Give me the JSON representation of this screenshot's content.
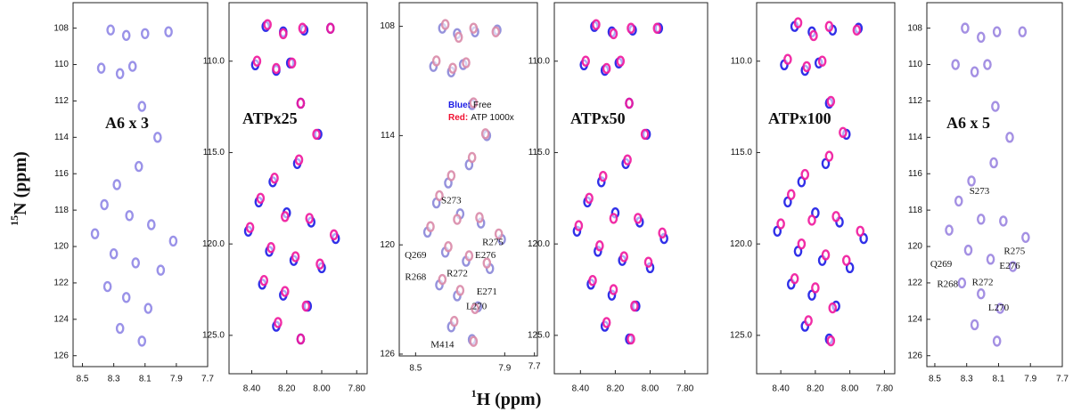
{
  "figure": {
    "ylabel_sup": "15",
    "ylabel": "N (ppm)",
    "xlabel_sup": "1",
    "xlabel": "H (ppm)"
  },
  "chart_data": [
    {
      "type": "scatter",
      "title": "A6 x 3",
      "xlim": [
        8.56,
        7.7
      ],
      "ylim": [
        106.6,
        126.6
      ],
      "xticks": [
        8.5,
        8.3,
        8.1,
        7.9,
        7.7
      ],
      "yticks": [
        108,
        110,
        112,
        114,
        116,
        118,
        120,
        122,
        124,
        126
      ],
      "series": [
        {
          "color": "#8f86e6",
          "x": [
            8.32,
            8.22,
            8.1,
            7.95,
            8.38,
            8.26,
            8.18,
            8.12,
            8.02,
            8.14,
            8.28,
            8.36,
            8.2,
            8.06,
            7.92,
            8.42,
            8.3,
            8.16,
            8.0,
            8.34,
            8.22,
            8.08,
            8.26,
            8.12
          ],
          "values": [
            108.1,
            108.4,
            108.3,
            108.2,
            110.2,
            110.5,
            110.1,
            112.3,
            114.0,
            115.6,
            116.6,
            117.7,
            118.3,
            118.8,
            119.7,
            119.3,
            120.4,
            120.9,
            121.3,
            122.2,
            122.8,
            123.4,
            124.5,
            125.2
          ]
        }
      ]
    },
    {
      "type": "scatter",
      "title": "ATPx25",
      "xlim": [
        8.53,
        7.74
      ],
      "ylim": [
        106.8,
        127.1
      ],
      "xticks": [
        {
          "value": 8.4,
          "label": "8.40"
        },
        {
          "value": 8.2,
          "label": "8.20"
        },
        {
          "value": 8,
          "label": "8.00"
        },
        {
          "value": 7.8,
          "label": "7.80"
        }
      ],
      "yticks": [
        {
          "value": 110,
          "label": "110.0"
        },
        {
          "value": 115,
          "label": "115.0"
        },
        {
          "value": 120,
          "label": "120.0"
        },
        {
          "value": 125,
          "label": "125.0"
        }
      ],
      "series": [
        {
          "color": "#1a1ae6",
          "x": [
            8.32,
            8.22,
            8.1,
            7.95,
            8.38,
            8.26,
            8.18,
            8.12,
            8.02,
            8.14,
            8.28,
            8.36,
            8.2,
            8.06,
            7.92,
            8.42,
            8.3,
            8.16,
            8.0,
            8.34,
            8.22,
            8.08,
            8.26,
            8.12
          ],
          "values": [
            108.1,
            108.4,
            108.3,
            108.2,
            110.2,
            110.5,
            110.1,
            112.3,
            114.0,
            115.6,
            116.6,
            117.7,
            118.3,
            118.8,
            119.7,
            119.3,
            120.4,
            120.9,
            121.3,
            122.2,
            122.8,
            123.4,
            124.5,
            125.2
          ]
        },
        {
          "color": "#f0169c",
          "x": [
            8.31,
            8.22,
            8.11,
            7.95,
            8.37,
            8.26,
            8.17,
            8.12,
            8.03,
            8.13,
            8.27,
            8.35,
            8.21,
            8.07,
            7.93,
            8.41,
            8.29,
            8.15,
            8.01,
            8.33,
            8.21,
            8.09,
            8.25,
            8.12
          ],
          "values": [
            108.0,
            108.5,
            108.2,
            108.2,
            110.0,
            110.4,
            110.1,
            112.3,
            114.0,
            115.4,
            116.4,
            117.5,
            118.5,
            118.6,
            119.5,
            119.1,
            120.2,
            120.7,
            121.1,
            122.0,
            122.6,
            123.4,
            124.3,
            125.2
          ]
        }
      ]
    },
    {
      "type": "scatter",
      "xlim": [
        8.61,
        7.68
      ],
      "ylim": [
        106.7,
        126.1
      ],
      "xticks": [
        8.5,
        7.9,
        7.7
      ],
      "yticks": [
        108,
        114,
        120,
        126
      ],
      "series": [
        {
          "name": "Free",
          "label_prefix": "Blue:",
          "color": "#8a86d8",
          "x": [
            8.32,
            8.22,
            8.1,
            7.95,
            8.38,
            8.26,
            8.18,
            8.12,
            8.02,
            8.14,
            8.28,
            8.36,
            8.2,
            8.06,
            7.92,
            8.42,
            8.3,
            8.16,
            8.0,
            8.34,
            8.22,
            8.08,
            8.26,
            8.12
          ],
          "values": [
            108.1,
            108.4,
            108.3,
            108.2,
            110.2,
            110.5,
            110.1,
            112.3,
            114.0,
            115.6,
            116.6,
            117.7,
            118.3,
            118.8,
            119.7,
            119.3,
            120.4,
            120.9,
            121.3,
            122.2,
            122.8,
            123.4,
            124.5,
            125.2
          ]
        },
        {
          "name": "ATP 1000x",
          "label_prefix": "Red:",
          "color": "#d98aa8",
          "x": [
            8.3,
            8.21,
            8.11,
            7.96,
            8.36,
            8.25,
            8.16,
            8.11,
            8.03,
            8.12,
            8.26,
            8.34,
            8.22,
            8.07,
            7.94,
            8.4,
            8.28,
            8.14,
            8.02,
            8.32,
            8.2,
            8.1,
            8.24,
            8.11
          ],
          "values": [
            107.9,
            108.6,
            108.1,
            108.3,
            109.9,
            110.3,
            110.0,
            112.2,
            113.9,
            115.2,
            116.2,
            117.3,
            118.6,
            118.5,
            119.4,
            119.0,
            120.1,
            120.6,
            121.0,
            121.9,
            122.5,
            123.5,
            124.2,
            125.3
          ]
        }
      ],
      "annotations": [
        {
          "text": "S273",
          "x": 8.26,
          "y": 117.6
        },
        {
          "text": "Q269",
          "x": 8.5,
          "y": 120.6
        },
        {
          "text": "R275",
          "x": 7.98,
          "y": 119.9
        },
        {
          "text": "E276",
          "x": 8.03,
          "y": 120.6
        },
        {
          "text": "R268",
          "x": 8.5,
          "y": 121.8
        },
        {
          "text": "R272",
          "x": 8.22,
          "y": 121.6
        },
        {
          "text": "E271",
          "x": 8.02,
          "y": 122.6
        },
        {
          "text": "L270",
          "x": 8.09,
          "y": 123.4
        },
        {
          "text": "M414",
          "x": 8.32,
          "y": 125.5
        }
      ]
    },
    {
      "type": "scatter",
      "title": "ATPx50",
      "xlim": [
        8.55,
        7.67
      ],
      "ylim": [
        106.8,
        127.1
      ],
      "xticks": [
        {
          "value": 8.4,
          "label": "8.40"
        },
        {
          "value": 8.2,
          "label": "8.20"
        },
        {
          "value": 8,
          "label": "8.00"
        },
        {
          "value": 7.8,
          "label": "7.80"
        }
      ],
      "yticks": [
        {
          "value": 110,
          "label": "110.0"
        },
        {
          "value": 115,
          "label": "115.0"
        },
        {
          "value": 120,
          "label": "120.0"
        },
        {
          "value": 125,
          "label": "125.0"
        }
      ],
      "series": [
        {
          "color": "#1a1ae6",
          "x": [
            8.32,
            8.22,
            8.1,
            7.95,
            8.38,
            8.26,
            8.18,
            8.12,
            8.02,
            8.14,
            8.28,
            8.36,
            8.2,
            8.06,
            7.92,
            8.42,
            8.3,
            8.16,
            8.0,
            8.34,
            8.22,
            8.08,
            8.26,
            8.12
          ],
          "values": [
            108.1,
            108.4,
            108.3,
            108.2,
            110.2,
            110.5,
            110.1,
            112.3,
            114.0,
            115.6,
            116.6,
            117.7,
            118.3,
            118.8,
            119.7,
            119.3,
            120.4,
            120.9,
            121.3,
            122.2,
            122.8,
            123.4,
            124.5,
            125.2
          ]
        },
        {
          "color": "#f0169c",
          "x": [
            8.31,
            8.21,
            8.11,
            7.96,
            8.37,
            8.25,
            8.17,
            8.12,
            8.03,
            8.13,
            8.27,
            8.35,
            8.21,
            8.07,
            7.93,
            8.41,
            8.29,
            8.15,
            8.01,
            8.33,
            8.21,
            8.09,
            8.25,
            8.11
          ],
          "values": [
            108.0,
            108.5,
            108.2,
            108.2,
            110.0,
            110.4,
            110.0,
            112.3,
            114.0,
            115.4,
            116.3,
            117.5,
            118.6,
            118.6,
            119.4,
            119.0,
            120.1,
            120.7,
            121.0,
            122.0,
            122.5,
            123.4,
            124.3,
            125.2
          ]
        }
      ]
    },
    {
      "type": "scatter",
      "title": "ATPx100",
      "xlim": [
        8.54,
        7.74
      ],
      "ylim": [
        106.8,
        127.1
      ],
      "xticks": [
        {
          "value": 8.4,
          "label": "8.40"
        },
        {
          "value": 8.2,
          "label": "8.20"
        },
        {
          "value": 8,
          "label": "8.00"
        },
        {
          "value": 7.8,
          "label": "7.80"
        }
      ],
      "yticks": [
        {
          "value": 110,
          "label": "110.0"
        },
        {
          "value": 115,
          "label": "115.0"
        },
        {
          "value": 120,
          "label": "120.0"
        },
        {
          "value": 125,
          "label": "125.0"
        }
      ],
      "series": [
        {
          "color": "#1a1ae6",
          "x": [
            8.32,
            8.22,
            8.1,
            7.95,
            8.38,
            8.26,
            8.18,
            8.12,
            8.02,
            8.14,
            8.28,
            8.36,
            8.2,
            8.06,
            7.92,
            8.42,
            8.3,
            8.16,
            8.0,
            8.34,
            8.22,
            8.08,
            8.26,
            8.12
          ],
          "values": [
            108.1,
            108.4,
            108.3,
            108.2,
            110.2,
            110.5,
            110.1,
            112.3,
            114.0,
            115.6,
            116.6,
            117.7,
            118.3,
            118.8,
            119.7,
            119.3,
            120.4,
            120.9,
            121.3,
            122.2,
            122.8,
            123.4,
            124.5,
            125.2
          ]
        },
        {
          "color": "#f0169c",
          "x": [
            8.3,
            8.21,
            8.12,
            7.96,
            8.36,
            8.25,
            8.16,
            8.11,
            8.04,
            8.12,
            8.26,
            8.34,
            8.22,
            8.08,
            7.94,
            8.4,
            8.28,
            8.14,
            8.02,
            8.32,
            8.2,
            8.1,
            8.24,
            8.11
          ],
          "values": [
            107.9,
            108.6,
            108.1,
            108.3,
            109.9,
            110.3,
            110.0,
            112.2,
            113.9,
            115.2,
            116.2,
            117.3,
            118.7,
            118.5,
            119.3,
            118.9,
            120.0,
            120.6,
            120.9,
            121.9,
            122.4,
            123.5,
            124.2,
            125.3
          ]
        }
      ]
    },
    {
      "type": "scatter",
      "title": "A6 x 5",
      "xlim": [
        8.55,
        7.7
      ],
      "ylim": [
        106.6,
        126.6
      ],
      "xticks": [
        8.5,
        8.3,
        8.1,
        7.9,
        7.7
      ],
      "yticks": [
        108,
        110,
        112,
        114,
        116,
        118,
        120,
        122,
        124,
        126
      ],
      "series": [
        {
          "color": "#9a84e0",
          "x": [
            8.31,
            8.21,
            8.11,
            7.95,
            8.37,
            8.25,
            8.17,
            8.12,
            8.03,
            8.13,
            8.27,
            8.35,
            8.21,
            8.07,
            7.93,
            8.41,
            8.29,
            8.15,
            8.01,
            8.33,
            8.21,
            8.09,
            8.25,
            8.11
          ],
          "values": [
            108.0,
            108.5,
            108.2,
            108.2,
            110.0,
            110.4,
            110.0,
            112.3,
            114.0,
            115.4,
            116.4,
            117.5,
            118.5,
            118.6,
            119.5,
            119.1,
            120.2,
            120.7,
            121.1,
            122.0,
            122.6,
            123.4,
            124.3,
            125.2
          ]
        }
      ],
      "annotations": [
        {
          "text": "S273",
          "x": 8.22,
          "y": 117.0
        },
        {
          "text": "R275",
          "x": 8.0,
          "y": 120.3
        },
        {
          "text": "Q269",
          "x": 8.46,
          "y": 121.0
        },
        {
          "text": "E276",
          "x": 8.03,
          "y": 121.1
        },
        {
          "text": "R268",
          "x": 8.42,
          "y": 122.1
        },
        {
          "text": "R272",
          "x": 8.2,
          "y": 122.0
        },
        {
          "text": "L270",
          "x": 8.1,
          "y": 123.4
        }
      ]
    }
  ]
}
